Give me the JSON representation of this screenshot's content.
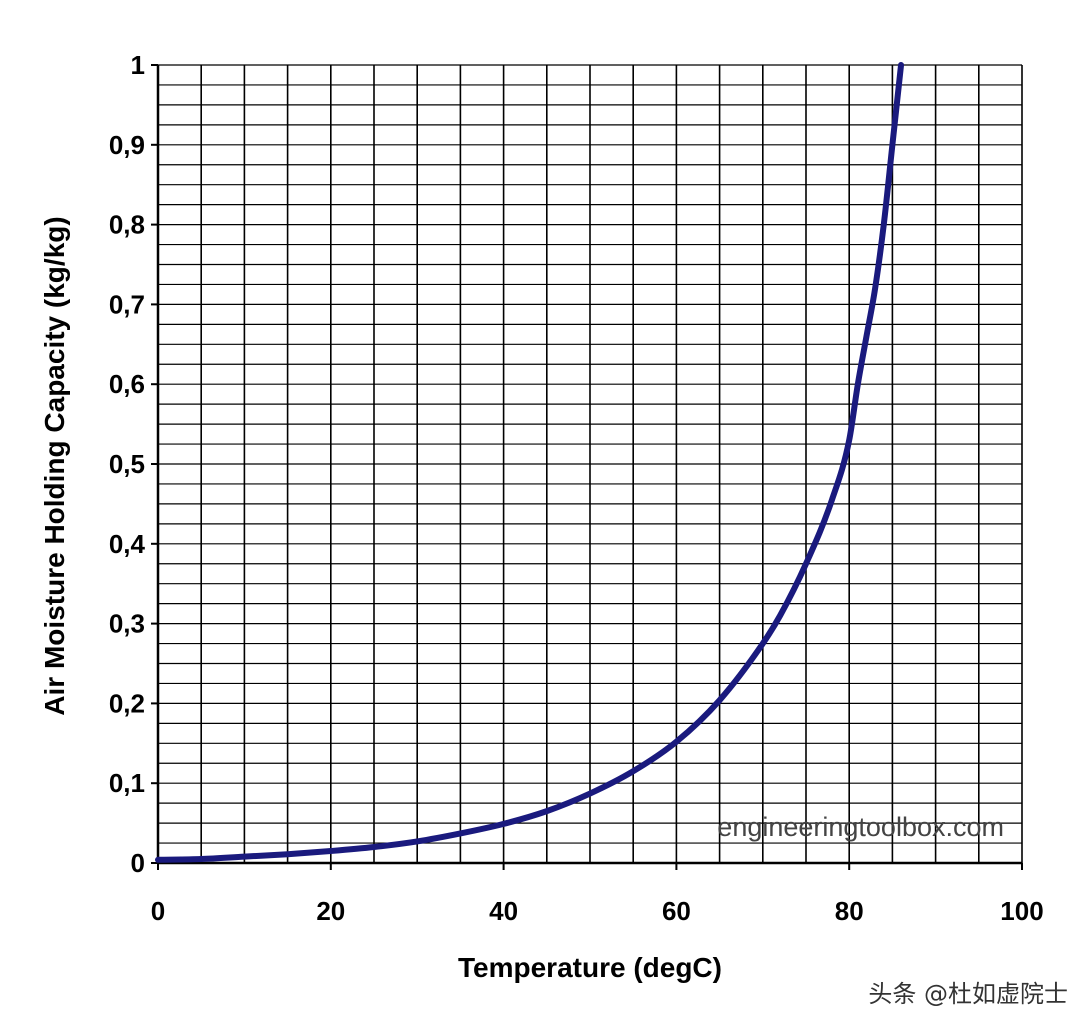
{
  "chart_data": {
    "type": "line",
    "title": "",
    "xlabel": "Temperature (degC)",
    "ylabel": "Air Moisture Holding Capacity (kg/kg)",
    "xlim": [
      0,
      100
    ],
    "ylim": [
      0,
      1
    ],
    "grid": true,
    "x_minor_step": 5,
    "y_minor_step": 0.025,
    "x_ticks": [
      0,
      20,
      40,
      60,
      80,
      100
    ],
    "x_tick_labels": [
      "0",
      "20",
      "40",
      "60",
      "80",
      "100"
    ],
    "y_ticks": [
      0,
      0.1,
      0.2,
      0.3,
      0.4,
      0.5,
      0.6,
      0.7,
      0.8,
      0.9,
      1
    ],
    "y_tick_labels": [
      "0",
      "0,1",
      "0,2",
      "0,3",
      "0,4",
      "0,5",
      "0,6",
      "0,7",
      "0,8",
      "0,9",
      "1"
    ],
    "series": [
      {
        "name": "Air Moisture Holding Capacity",
        "color": "#1a1a7e",
        "x": [
          0,
          5,
          10,
          15,
          20,
          25,
          30,
          35,
          40,
          45,
          50,
          55,
          60,
          65,
          70,
          72,
          75,
          78,
          80,
          81,
          82,
          83,
          84,
          85,
          86
        ],
        "y": [
          0.004,
          0.005,
          0.008,
          0.011,
          0.015,
          0.02,
          0.027,
          0.037,
          0.049,
          0.065,
          0.087,
          0.115,
          0.152,
          0.204,
          0.275,
          0.31,
          0.375,
          0.455,
          0.53,
          0.6,
          0.66,
          0.72,
          0.8,
          0.9,
          1.0
        ]
      }
    ],
    "annotations": [
      "engineeringtoolbox.com"
    ]
  },
  "credit": "头条 @杜如虚院士",
  "colors": {
    "grid": "#000000",
    "line": "#1a1a7e",
    "background": "#ffffff"
  }
}
